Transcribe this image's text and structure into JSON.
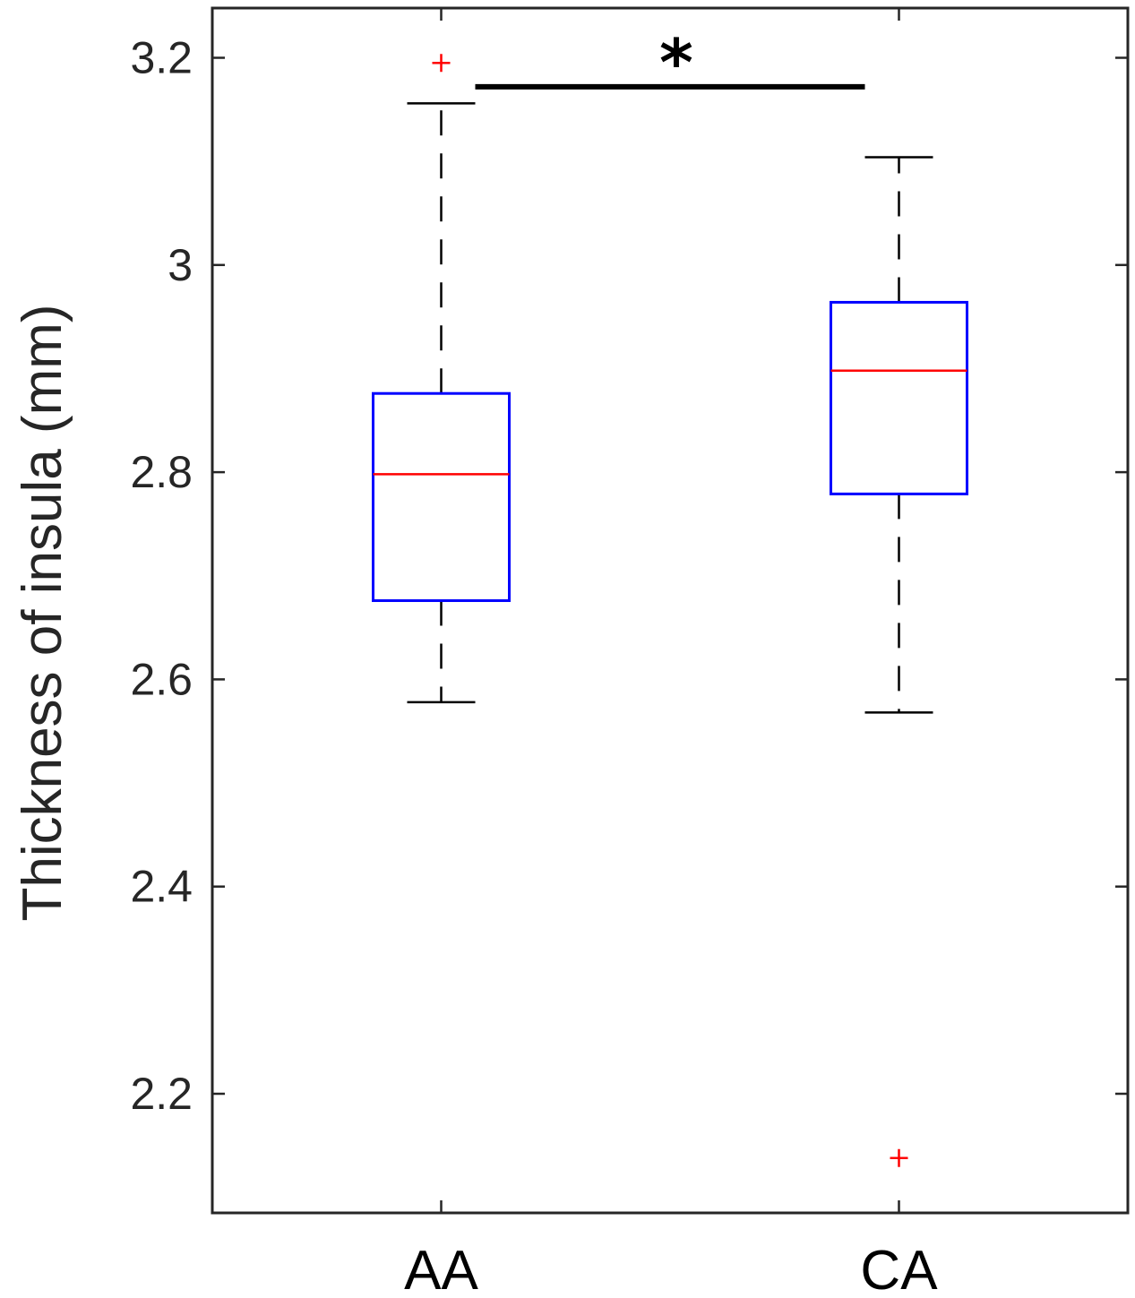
{
  "chart_data": {
    "type": "box",
    "ylabel": "Thickness of insula (mm)",
    "xlabel": "",
    "ylim": [
      2.085,
      3.248
    ],
    "yticks": [
      2.2,
      2.4,
      2.6,
      2.8,
      3.0,
      3.2
    ],
    "ytick_labels": [
      "2.2",
      "2.4",
      "2.6",
      "2.8",
      "3",
      "3.2"
    ],
    "categories": [
      "AA",
      "CA"
    ],
    "boxes": [
      {
        "category": "AA",
        "whisker_low": 2.578,
        "q1": 2.676,
        "median": 2.798,
        "q3": 2.876,
        "whisker_high": 3.156,
        "outliers": [
          3.195
        ]
      },
      {
        "category": "CA",
        "whisker_low": 2.568,
        "q1": 2.779,
        "median": 2.898,
        "q3": 2.964,
        "whisker_high": 3.104,
        "outliers": [
          2.138
        ]
      }
    ],
    "significance": {
      "between": [
        "AA",
        "CA"
      ],
      "label": "*",
      "bar_y": 3.172
    },
    "colors": {
      "box": "#0000ff",
      "median": "#ff0000",
      "outlier": "#ff0000",
      "whisker": "#000000",
      "axis": "#262626"
    },
    "grid": false
  }
}
